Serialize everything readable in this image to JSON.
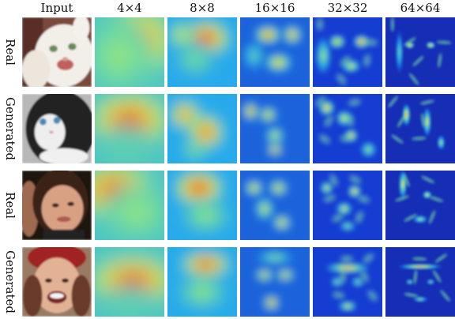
{
  "headers": [
    "Input",
    "4×4",
    "8×8",
    "16×16",
    "32×32",
    "64×64"
  ],
  "rows": [
    {
      "label": "Real",
      "subject": "cat"
    },
    {
      "label": "Generated",
      "subject": "cat"
    },
    {
      "label": "Real",
      "subject": "face"
    },
    {
      "label": "Generated",
      "subject": "face"
    }
  ],
  "colors": {
    "heat_low": "#1f3fb0",
    "heat_mid": "#f5e52a",
    "heat_high": "#d8262a"
  }
}
